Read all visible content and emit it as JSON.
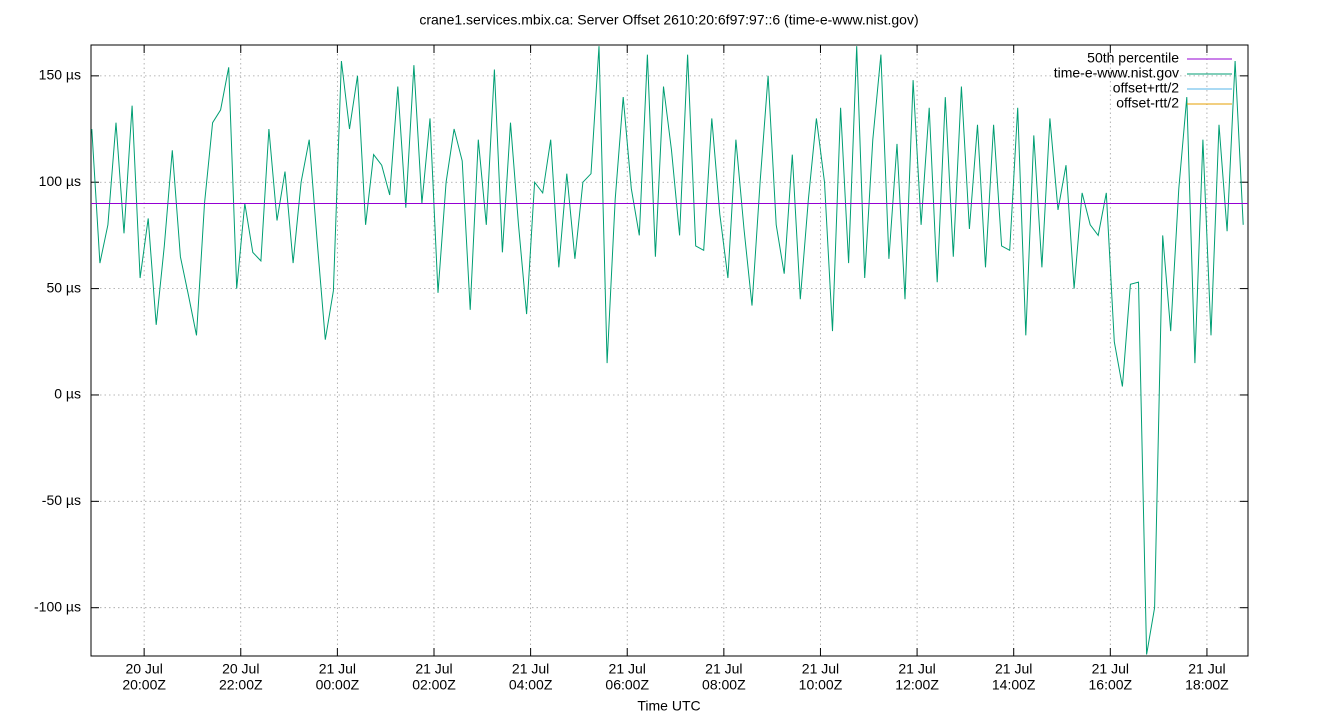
{
  "chart_data": {
    "type": "line",
    "title": "crane1.services.mbix.ca: Server Offset 2610:20:6f97:97::6 (time-e-www.nist.gov)",
    "xlabel": "Time UTC",
    "xlim": [
      "20 Jul 18:54Z",
      "21 Jul 18:51Z"
    ],
    "xticks": [
      {
        "value": "20 Jul 20:00Z",
        "label": [
          "20 Jul",
          "20:00Z"
        ]
      },
      {
        "value": "20 Jul 22:00Z",
        "label": [
          "20 Jul",
          "22:00Z"
        ]
      },
      {
        "value": "21 Jul 00:00Z",
        "label": [
          "21 Jul",
          "00:00Z"
        ]
      },
      {
        "value": "21 Jul 02:00Z",
        "label": [
          "21 Jul",
          "02:00Z"
        ]
      },
      {
        "value": "21 Jul 04:00Z",
        "label": [
          "21 Jul",
          "04:00Z"
        ]
      },
      {
        "value": "21 Jul 06:00Z",
        "label": [
          "21 Jul",
          "06:00Z"
        ]
      },
      {
        "value": "21 Jul 08:00Z",
        "label": [
          "21 Jul",
          "08:00Z"
        ]
      },
      {
        "value": "21 Jul 10:00Z",
        "label": [
          "21 Jul",
          "10:00Z"
        ]
      },
      {
        "value": "21 Jul 12:00Z",
        "label": [
          "21 Jul",
          "12:00Z"
        ]
      },
      {
        "value": "21 Jul 14:00Z",
        "label": [
          "21 Jul",
          "14:00Z"
        ]
      },
      {
        "value": "21 Jul 16:00Z",
        "label": [
          "21 Jul",
          "16:00Z"
        ]
      },
      {
        "value": "21 Jul 18:00Z",
        "label": [
          "21 Jul",
          "18:00Z"
        ]
      }
    ],
    "ylim": [
      -122.7,
      164.5
    ],
    "yticks": [
      {
        "value": -100,
        "label": "-100 µs"
      },
      {
        "value": -50,
        "label": "-50 µs"
      },
      {
        "value": 0,
        "label": "0 µs"
      },
      {
        "value": 50,
        "label": "50 µs"
      },
      {
        "value": 100,
        "label": "100 µs"
      },
      {
        "value": 150,
        "label": "150 µs"
      }
    ],
    "grid": true,
    "legend": "top-right",
    "series": [
      {
        "name": "50th percentile",
        "color": "#9400d3",
        "x": [
          "20 Jul 18:54Z",
          "21 Jul 18:51Z"
        ],
        "values": [
          90,
          90
        ]
      },
      {
        "name": "time-e-www.nist.gov",
        "color": "#009e73",
        "x": [
          "20 Jul 18:55Z",
          "20 Jul 19:05Z",
          "20 Jul 19:15Z",
          "20 Jul 19:25Z",
          "20 Jul 19:35Z",
          "20 Jul 19:45Z",
          "20 Jul 19:55Z",
          "20 Jul 20:05Z",
          "20 Jul 20:15Z",
          "20 Jul 20:25Z",
          "20 Jul 20:35Z",
          "20 Jul 20:45Z",
          "20 Jul 20:55Z",
          "20 Jul 21:05Z",
          "20 Jul 21:15Z",
          "20 Jul 21:25Z",
          "20 Jul 21:35Z",
          "20 Jul 21:45Z",
          "20 Jul 21:55Z",
          "20 Jul 22:05Z",
          "20 Jul 22:15Z",
          "20 Jul 22:25Z",
          "20 Jul 22:35Z",
          "20 Jul 22:45Z",
          "20 Jul 22:55Z",
          "20 Jul 23:05Z",
          "20 Jul 23:15Z",
          "20 Jul 23:25Z",
          "20 Jul 23:35Z",
          "20 Jul 23:45Z",
          "20 Jul 23:55Z",
          "21 Jul 00:05Z",
          "21 Jul 00:15Z",
          "21 Jul 00:25Z",
          "21 Jul 00:35Z",
          "21 Jul 00:45Z",
          "21 Jul 00:55Z",
          "21 Jul 01:05Z",
          "21 Jul 01:15Z",
          "21 Jul 01:25Z",
          "21 Jul 01:35Z",
          "21 Jul 01:45Z",
          "21 Jul 01:55Z",
          "21 Jul 02:05Z",
          "21 Jul 02:15Z",
          "21 Jul 02:25Z",
          "21 Jul 02:35Z",
          "21 Jul 02:45Z",
          "21 Jul 02:55Z",
          "21 Jul 03:05Z",
          "21 Jul 03:15Z",
          "21 Jul 03:25Z",
          "21 Jul 03:35Z",
          "21 Jul 03:45Z",
          "21 Jul 03:55Z",
          "21 Jul 04:05Z",
          "21 Jul 04:15Z",
          "21 Jul 04:25Z",
          "21 Jul 04:35Z",
          "21 Jul 04:45Z",
          "21 Jul 04:55Z",
          "21 Jul 05:05Z",
          "21 Jul 05:15Z",
          "21 Jul 05:25Z",
          "21 Jul 05:35Z",
          "21 Jul 05:45Z",
          "21 Jul 05:55Z",
          "21 Jul 06:05Z",
          "21 Jul 06:15Z",
          "21 Jul 06:25Z",
          "21 Jul 06:35Z",
          "21 Jul 06:45Z",
          "21 Jul 06:55Z",
          "21 Jul 07:05Z",
          "21 Jul 07:15Z",
          "21 Jul 07:25Z",
          "21 Jul 07:35Z",
          "21 Jul 07:45Z",
          "21 Jul 07:55Z",
          "21 Jul 08:05Z",
          "21 Jul 08:15Z",
          "21 Jul 08:25Z",
          "21 Jul 08:35Z",
          "21 Jul 08:45Z",
          "21 Jul 08:55Z",
          "21 Jul 09:05Z",
          "21 Jul 09:15Z",
          "21 Jul 09:25Z",
          "21 Jul 09:35Z",
          "21 Jul 09:45Z",
          "21 Jul 09:55Z",
          "21 Jul 10:05Z",
          "21 Jul 10:15Z",
          "21 Jul 10:25Z",
          "21 Jul 10:35Z",
          "21 Jul 10:45Z",
          "21 Jul 10:55Z",
          "21 Jul 11:05Z",
          "21 Jul 11:15Z",
          "21 Jul 11:25Z",
          "21 Jul 11:35Z",
          "21 Jul 11:45Z",
          "21 Jul 11:55Z",
          "21 Jul 12:05Z",
          "21 Jul 12:15Z",
          "21 Jul 12:25Z",
          "21 Jul 12:35Z",
          "21 Jul 12:45Z",
          "21 Jul 12:55Z",
          "21 Jul 13:05Z",
          "21 Jul 13:15Z",
          "21 Jul 13:25Z",
          "21 Jul 13:35Z",
          "21 Jul 13:45Z",
          "21 Jul 13:55Z",
          "21 Jul 14:05Z",
          "21 Jul 14:15Z",
          "21 Jul 14:25Z",
          "21 Jul 14:35Z",
          "21 Jul 14:45Z",
          "21 Jul 14:55Z",
          "21 Jul 15:05Z",
          "21 Jul 15:15Z",
          "21 Jul 15:25Z",
          "21 Jul 15:35Z",
          "21 Jul 15:45Z",
          "21 Jul 15:55Z",
          "21 Jul 16:05Z",
          "21 Jul 16:15Z",
          "21 Jul 16:25Z",
          "21 Jul 16:35Z",
          "21 Jul 16:45Z",
          "21 Jul 16:55Z",
          "21 Jul 17:05Z",
          "21 Jul 17:15Z",
          "21 Jul 17:25Z",
          "21 Jul 17:35Z",
          "21 Jul 17:45Z",
          "21 Jul 17:55Z",
          "21 Jul 18:05Z",
          "21 Jul 18:15Z",
          "21 Jul 18:25Z",
          "21 Jul 18:35Z",
          "21 Jul 18:45Z"
        ],
        "values": [
          125,
          62,
          80,
          128,
          76,
          136,
          55,
          83,
          33,
          70,
          115,
          65,
          47,
          28,
          90,
          128,
          134,
          154,
          50,
          90,
          67,
          63,
          125,
          82,
          105,
          62,
          100,
          120,
          72,
          26,
          49,
          157,
          125,
          150,
          80,
          113,
          108,
          94,
          145,
          88,
          155,
          90,
          130,
          48,
          100,
          125,
          110,
          40,
          120,
          80,
          153,
          67,
          128,
          80,
          38,
          100,
          95,
          120,
          60,
          104,
          64,
          100,
          104,
          164,
          15,
          92,
          140,
          97,
          75,
          160,
          65,
          145,
          115,
          75,
          160,
          70,
          68,
          130,
          85,
          55,
          120,
          78,
          42,
          100,
          150,
          80,
          57,
          113,
          45,
          92,
          130,
          100,
          30,
          135,
          62,
          164,
          55,
          120,
          160,
          64,
          118,
          45,
          148,
          80,
          135,
          53,
          140,
          65,
          145,
          78,
          127,
          60,
          127,
          70,
          68,
          135,
          28,
          122,
          60,
          130,
          87,
          108,
          50,
          95,
          80,
          75,
          95,
          25,
          4,
          52,
          53,
          -122,
          -100,
          75,
          30,
          97,
          140,
          15,
          120,
          28,
          127,
          77,
          157,
          80
        ]
      },
      {
        "name": "offset+rtt/2",
        "color": "#56b4e9",
        "x": [],
        "values": []
      },
      {
        "name": "offset-rtt/2",
        "color": "#e69f00",
        "x": [],
        "values": []
      }
    ]
  }
}
